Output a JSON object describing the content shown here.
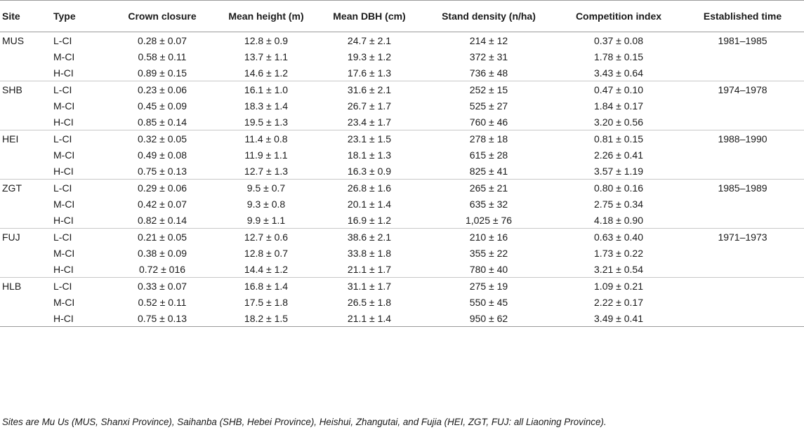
{
  "table": {
    "columns": [
      "Site",
      "Type",
      "Crown closure",
      "Mean height (m)",
      "Mean DBH (cm)",
      "Stand density (n/ha)",
      "Competition index",
      "Established time"
    ],
    "groups": [
      {
        "site": "MUS",
        "established": "1981–1985",
        "rows": [
          {
            "type": "L-CI",
            "crown": "0.28 ± 0.07",
            "height": "12.8 ± 0.9",
            "dbh": "24.7 ± 2.1",
            "density": "214 ± 12",
            "ci": "0.37 ± 0.08"
          },
          {
            "type": "M-CI",
            "crown": "0.58 ± 0.11",
            "height": "13.7 ± 1.1",
            "dbh": "19.3 ± 1.2",
            "density": "372 ± 31",
            "ci": "1.78 ± 0.15"
          },
          {
            "type": "H-CI",
            "crown": "0.89 ± 0.15",
            "height": "14.6 ± 1.2",
            "dbh": "17.6 ± 1.3",
            "density": "736 ± 48",
            "ci": "3.43 ± 0.64"
          }
        ]
      },
      {
        "site": "SHB",
        "established": "1974–1978",
        "rows": [
          {
            "type": "L-CI",
            "crown": "0.23 ± 0.06",
            "height": "16.1 ± 1.0",
            "dbh": "31.6 ± 2.1",
            "density": "252 ± 15",
            "ci": "0.47 ± 0.10"
          },
          {
            "type": "M-CI",
            "crown": "0.45 ± 0.09",
            "height": "18.3 ± 1.4",
            "dbh": "26.7 ± 1.7",
            "density": "525 ± 27",
            "ci": "1.84 ± 0.17"
          },
          {
            "type": "H-CI",
            "crown": "0.85 ± 0.14",
            "height": "19.5 ± 1.3",
            "dbh": "23.4 ± 1.7",
            "density": "760 ± 46",
            "ci": "3.20 ± 0.56"
          }
        ]
      },
      {
        "site": "HEI",
        "established": "1988–1990",
        "rows": [
          {
            "type": "L-CI",
            "crown": "0.32 ± 0.05",
            "height": "11.4 ± 0.8",
            "dbh": "23.1 ± 1.5",
            "density": "278 ± 18",
            "ci": "0.81 ± 0.15"
          },
          {
            "type": "M-CI",
            "crown": "0.49 ± 0.08",
            "height": "11.9 ± 1.1",
            "dbh": "18.1 ± 1.3",
            "density": "615 ± 28",
            "ci": "2.26 ± 0.41"
          },
          {
            "type": "H-CI",
            "crown": "0.75 ± 0.13",
            "height": "12.7 ± 1.3",
            "dbh": "16.3 ± 0.9",
            "density": "825 ± 41",
            "ci": "3.57 ± 1.19"
          }
        ]
      },
      {
        "site": "ZGT",
        "established": "1985–1989",
        "rows": [
          {
            "type": "L-CI",
            "crown": "0.29 ± 0.06",
            "height": "9.5 ± 0.7",
            "dbh": "26.8 ± 1.6",
            "density": "265 ± 21",
            "ci": "0.80 ± 0.16"
          },
          {
            "type": "M-CI",
            "crown": "0.42 ± 0.07",
            "height": "9.3 ± 0.8",
            "dbh": "20.1 ± 1.4",
            "density": "635 ± 32",
            "ci": "2.75 ± 0.34"
          },
          {
            "type": "H-CI",
            "crown": "0.82 ± 0.14",
            "height": "9.9 ± 1.1",
            "dbh": "16.9 ± 1.2",
            "density": "1,025 ± 76",
            "ci": "4.18 ± 0.90"
          }
        ]
      },
      {
        "site": "FUJ",
        "established": "1971–1973",
        "rows": [
          {
            "type": "L-CI",
            "crown": "0.21 ± 0.05",
            "height": "12.7 ± 0.6",
            "dbh": "38.6 ± 2.1",
            "density": "210 ± 16",
            "ci": "0.63 ± 0.40"
          },
          {
            "type": "M-CI",
            "crown": "0.38 ± 0.09",
            "height": "12.8 ± 0.7",
            "dbh": "33.8 ± 1.8",
            "density": "355 ± 22",
            "ci": "1.73 ± 0.22"
          },
          {
            "type": "H-CI",
            "crown": "0.72 ± 016",
            "height": "14.4 ± 1.2",
            "dbh": "21.1 ± 1.7",
            "density": "780 ± 40",
            "ci": "3.21 ± 0.54"
          }
        ]
      },
      {
        "site": "HLB",
        "established": "",
        "rows": [
          {
            "type": "L-CI",
            "crown": "0.33 ± 0.07",
            "height": "16.8 ± 1.4",
            "dbh": "31.1 ± 1.7",
            "density": "275 ± 19",
            "ci": "1.09 ± 0.21"
          },
          {
            "type": "M-CI",
            "crown": "0.52 ± 0.11",
            "height": "17.5 ± 1.8",
            "dbh": "26.5 ± 1.8",
            "density": "550 ± 45",
            "ci": "2.22 ± 0.17"
          },
          {
            "type": "H-CI",
            "crown": "0.75 ± 0.13",
            "height": "18.2 ± 1.5",
            "dbh": "21.1 ± 1.4",
            "density": "950 ± 62",
            "ci": "3.49 ± 0.41"
          }
        ]
      }
    ]
  },
  "footnote": "Sites are Mu Us (MUS, Shanxi Province), Saihanba (SHB, Hebei Province), Heishui, Zhangutai, and Fujia (HEI, ZGT, FUJ: all Liaoning Province)."
}
